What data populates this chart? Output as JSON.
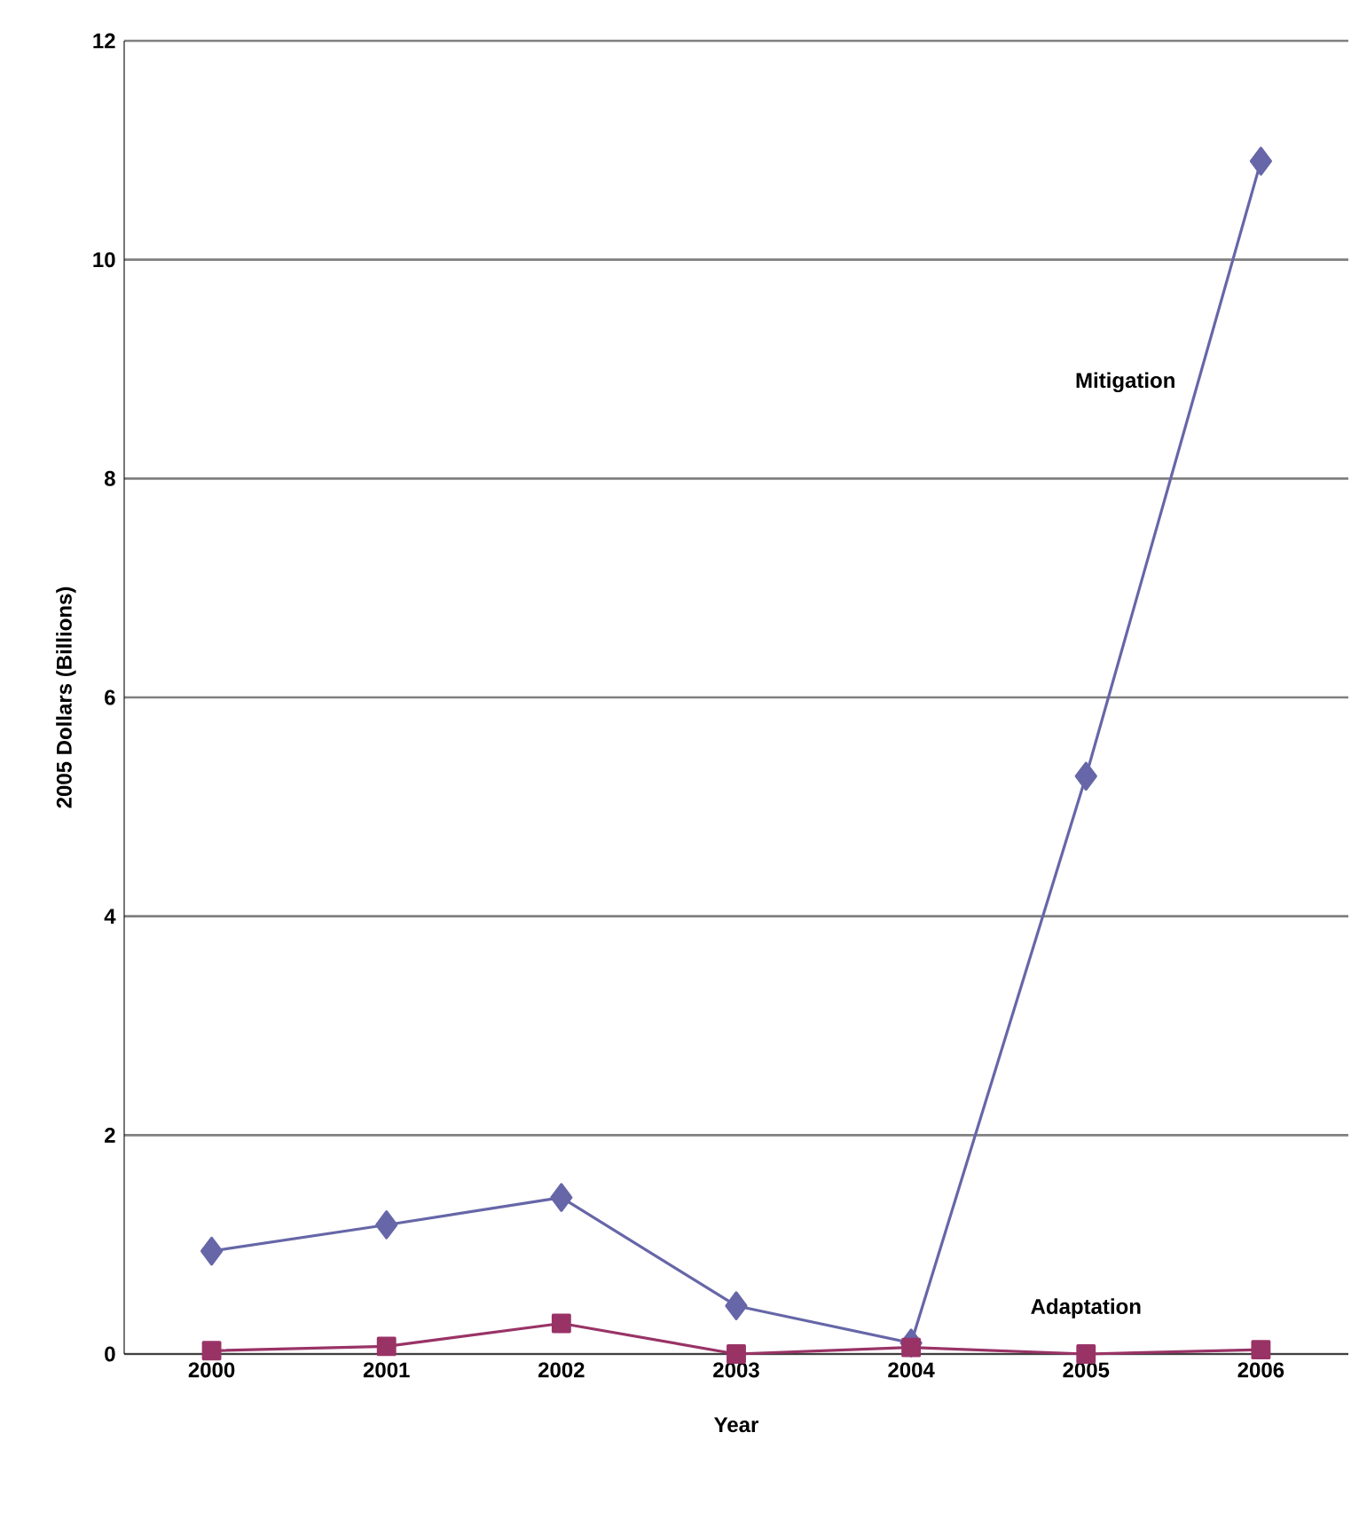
{
  "chart_data": {
    "type": "line",
    "xlabel": "Year",
    "ylabel": "2005 Dollars (Billions)",
    "categories": [
      "2000",
      "2001",
      "2002",
      "2003",
      "2004",
      "2005",
      "2006"
    ],
    "series": [
      {
        "name": "Mitigation",
        "color": "#6666a8",
        "marker": "diamond",
        "values": [
          0.94,
          1.18,
          1.43,
          0.44,
          0.1,
          5.28,
          10.9
        ]
      },
      {
        "name": "Adaptation",
        "color": "#993366",
        "marker": "square",
        "values": [
          0.03,
          0.07,
          0.28,
          0.0,
          0.06,
          0.0,
          0.04
        ]
      }
    ],
    "ylim": [
      0,
      12
    ],
    "yticks": [
      0,
      2,
      4,
      6,
      8,
      10,
      12
    ],
    "grid": "y",
    "line_style": "solid"
  }
}
